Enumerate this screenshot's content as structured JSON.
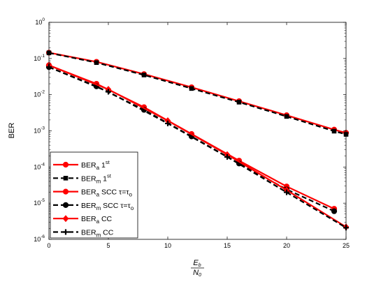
{
  "chart_data": {
    "type": "line",
    "title": "",
    "xlabel_num": "E",
    "xlabel_num_sub": "b",
    "xlabel_den": "N",
    "xlabel_den_sub": "0",
    "ylabel": "BER",
    "xlim": [
      0,
      25
    ],
    "ylim": [
      1e-06,
      1
    ],
    "yscale": "log",
    "grid": false,
    "legend_position": "bottom-left",
    "x_ticks": [
      "0",
      "5",
      "10",
      "15",
      "20",
      "25"
    ],
    "y_ticks": [
      {
        "base": "10",
        "exp": "0"
      },
      {
        "base": "10",
        "exp": "-1"
      },
      {
        "base": "10",
        "exp": "-2"
      },
      {
        "base": "10",
        "exp": "-3"
      },
      {
        "base": "10",
        "exp": "-4"
      },
      {
        "base": "10",
        "exp": "-5"
      },
      {
        "base": "10",
        "exp": "-6"
      }
    ],
    "series": [
      {
        "legend": {
          "main": "BER",
          "sub": "a",
          "rest": " 1",
          "sup": "st"
        },
        "color": "#ff0000",
        "dash": "solid",
        "marker": "circle",
        "x": [
          0,
          4,
          8,
          12,
          16,
          20,
          24,
          25
        ],
        "y": [
          0.145,
          0.081,
          0.037,
          0.016,
          0.0066,
          0.0027,
          0.00108,
          0.00088
        ]
      },
      {
        "legend": {
          "main": "BER",
          "sub": "m",
          "rest": " 1",
          "sup": "st"
        },
        "color": "#000000",
        "dash": "dashed",
        "marker": "square",
        "x": [
          0,
          4,
          8,
          12,
          16,
          20,
          24,
          25
        ],
        "y": [
          0.143,
          0.077,
          0.035,
          0.0148,
          0.0062,
          0.0025,
          0.00098,
          0.0008
        ]
      },
      {
        "legend": {
          "main": "BER",
          "sub": "a",
          "rest": " SCC τ=τ",
          "sub2": "o"
        },
        "color": "#ff0000",
        "dash": "solid",
        "marker": "circle",
        "x": [
          0,
          4,
          8,
          12,
          16,
          20,
          24
        ],
        "y": [
          0.065,
          0.02,
          0.0045,
          0.00082,
          0.00015,
          2.9e-05,
          7e-06
        ]
      },
      {
        "legend": {
          "main": "BER",
          "sub": "m",
          "rest": " SCC τ=τ",
          "sub2": "o"
        },
        "color": "#000000",
        "dash": "dashed",
        "marker": "circle",
        "x": [
          0,
          4,
          8,
          12,
          16,
          20,
          24
        ],
        "y": [
          0.058,
          0.017,
          0.0038,
          0.0007,
          0.000125,
          2.4e-05,
          6e-06
        ]
      },
      {
        "legend": {
          "main": "BER",
          "sub": "a",
          "rest": " CC"
        },
        "color": "#ff0000",
        "dash": "solid",
        "marker": "diamond",
        "x": [
          0,
          5,
          10,
          15,
          20,
          25
        ],
        "y": [
          0.065,
          0.014,
          0.0019,
          0.00022,
          2.3e-05,
          2.2e-06
        ]
      },
      {
        "legend": {
          "main": "BER",
          "sub": "m",
          "rest": " CC"
        },
        "color": "#000000",
        "dash": "dashed",
        "marker": "plus",
        "x": [
          0,
          5,
          10,
          15,
          20,
          25
        ],
        "y": [
          0.058,
          0.012,
          0.0016,
          0.00019,
          2e-05,
          2.1e-06
        ]
      }
    ]
  }
}
